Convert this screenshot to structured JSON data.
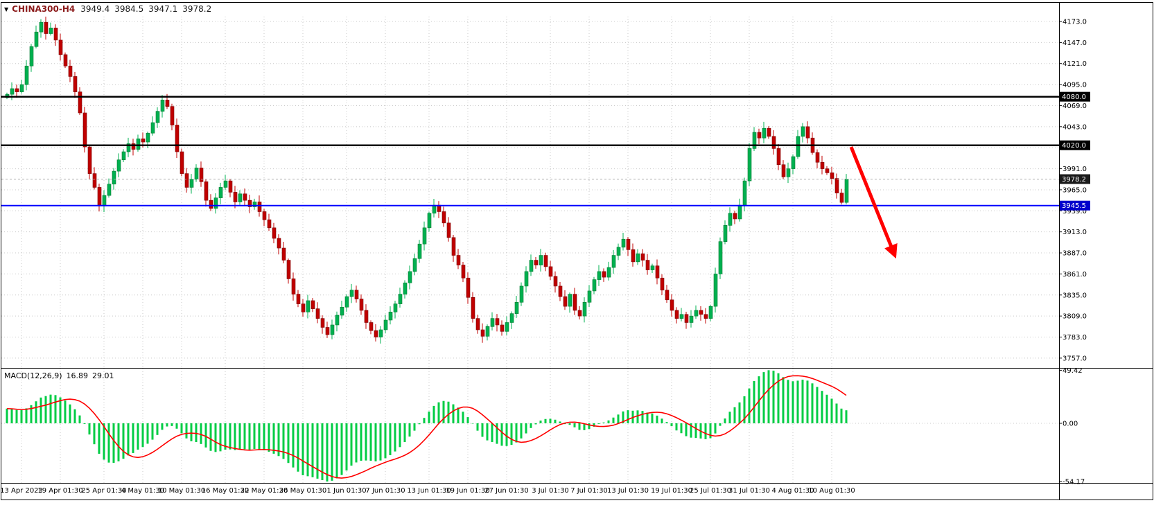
{
  "header": {
    "symbol_period": "CHINA300-H4",
    "open": "3949.4",
    "high": "3984.5",
    "low": "3947.1",
    "close": "3978.2"
  },
  "macd_header": {
    "label": "MACD(12,26,9)",
    "main_value": "16.89",
    "signal_value": "29.01"
  },
  "colors": {
    "bull": "#00b050",
    "bull_stroke": "#007a30",
    "bear": "#c00000",
    "bear_stroke": "#7a0000",
    "macd_bar": "#00cc44",
    "signal_line": "#ff0000",
    "grid": "#c8c8c8",
    "frame": "#000000",
    "hline_black": "#000000",
    "hline_blue": "#0000ff",
    "current_box": "#1a1a1a",
    "blue_box": "#0000cc",
    "arrow": "#ff0000",
    "axis_text": "#000000"
  },
  "chart_data": {
    "type": "candlestick",
    "title": "CHINA300-H4",
    "timeframe": "H4",
    "last_quote": {
      "open": 3949.4,
      "high": 3984.5,
      "low": 3947.1,
      "close": 3978.2
    },
    "price_axis": {
      "step": 26.0,
      "labels": [
        4173.0,
        4147.0,
        4121.0,
        4095.0,
        4069.0,
        4043.0,
        4017.0,
        3991.0,
        3965.0,
        3939.0,
        3913.0,
        3887.0,
        3861.0,
        3835.0,
        3809.0,
        3783.0,
        3757.0
      ]
    },
    "time_axis": [
      {
        "label": "13 Apr 2023",
        "i": 3
      },
      {
        "label": "19 Apr 01:30",
        "i": 11
      },
      {
        "label": "25 Apr 01:30",
        "i": 20
      },
      {
        "label": "4 May 01:30",
        "i": 28
      },
      {
        "label": "10 May 01:30",
        "i": 36
      },
      {
        "label": "16 May 01:30",
        "i": 45
      },
      {
        "label": "22 May 01:30",
        "i": 53
      },
      {
        "label": "26 May 01:30",
        "i": 61
      },
      {
        "label": "1 Jun 01:30",
        "i": 70
      },
      {
        "label": "7 Jun 01:30",
        "i": 78
      },
      {
        "label": "13 Jun 01:30",
        "i": 87
      },
      {
        "label": "19 Jun 01:30",
        "i": 95
      },
      {
        "label": "27 Jun 01:30",
        "i": 103
      },
      {
        "label": "3 Jul 01:30",
        "i": 112
      },
      {
        "label": "7 Jul 01:30",
        "i": 120
      },
      {
        "label": "13 Jul 01:30",
        "i": 128
      },
      {
        "label": "19 Jul 01:30",
        "i": 137
      },
      {
        "label": "25 Jul 01:30",
        "i": 145
      },
      {
        "label": "31 Jul 01:30",
        "i": 153
      },
      {
        "label": "4 Aug 01:30",
        "i": 162
      },
      {
        "label": "10 Aug 01:30",
        "i": 170
      }
    ],
    "closes": [
      4083,
      4090,
      4086,
      4095,
      4118,
      4142,
      4160,
      4172,
      4158,
      4165,
      4150,
      4132,
      4118,
      4105,
      4086,
      4060,
      4018,
      3985,
      3968,
      3945,
      3958,
      3972,
      3988,
      4002,
      4012,
      4022,
      4015,
      4028,
      4024,
      4035,
      4048,
      4062,
      4076,
      4068,
      4045,
      4012,
      3985,
      3968,
      3978,
      3992,
      3975,
      3952,
      3942,
      3955,
      3968,
      3976,
      3962,
      3950,
      3960,
      3952,
      3944,
      3950,
      3938,
      3928,
      3918,
      3905,
      3893,
      3878,
      3855,
      3836,
      3824,
      3814,
      3828,
      3818,
      3806,
      3795,
      3786,
      3798,
      3810,
      3820,
      3833,
      3841,
      3830,
      3816,
      3801,
      3791,
      3783,
      3792,
      3804,
      3814,
      3824,
      3836,
      3850,
      3864,
      3880,
      3898,
      3918,
      3936,
      3946,
      3938,
      3924,
      3906,
      3884,
      3872,
      3856,
      3832,
      3806,
      3792,
      3784,
      3796,
      3806,
      3798,
      3790,
      3801,
      3812,
      3826,
      3846,
      3864,
      3878,
      3872,
      3884,
      3870,
      3858,
      3846,
      3833,
      3821,
      3836,
      3816,
      3809,
      3826,
      3840,
      3854,
      3864,
      3857,
      3869,
      3884,
      3894,
      3904,
      3891,
      3876,
      3886,
      3878,
      3866,
      3871,
      3856,
      3841,
      3829,
      3816,
      3806,
      3811,
      3801,
      3809,
      3816,
      3811,
      3806,
      3821,
      3861,
      3901,
      3921,
      3936,
      3929,
      3946,
      3976,
      4016,
      4036,
      4029,
      4041,
      4031,
      4016,
      3996,
      3981,
      3991,
      4006,
      4031,
      4043,
      4029,
      4011,
      3999,
      3991,
      3986,
      3979,
      3961,
      3949.4,
      3978.2
    ],
    "hlines": [
      {
        "price": 4080.0,
        "label": "4080.0",
        "style": "black"
      },
      {
        "price": 4020.0,
        "label": "4020.0",
        "style": "black"
      },
      {
        "price": 3945.5,
        "label": "3945.5",
        "style": "blue"
      }
    ],
    "current_price": {
      "value": 3978.2,
      "label": "3978.2"
    },
    "macd": {
      "label": "MACD(12,26,9)",
      "main_value": 16.89,
      "signal_value": 29.01,
      "axis_labels": [
        {
          "label": "49.42",
          "v": 49.42
        },
        {
          "label": "0.00",
          "v": 0.0
        },
        {
          "label": "-54.17",
          "v": -54.17
        }
      ],
      "range": [
        -54.17,
        49.42
      ]
    },
    "annotations": [
      {
        "type": "arrow",
        "from": {
          "i": 174,
          "price": 4018
        },
        "to": {
          "i": 183,
          "price": 3884
        }
      }
    ]
  }
}
